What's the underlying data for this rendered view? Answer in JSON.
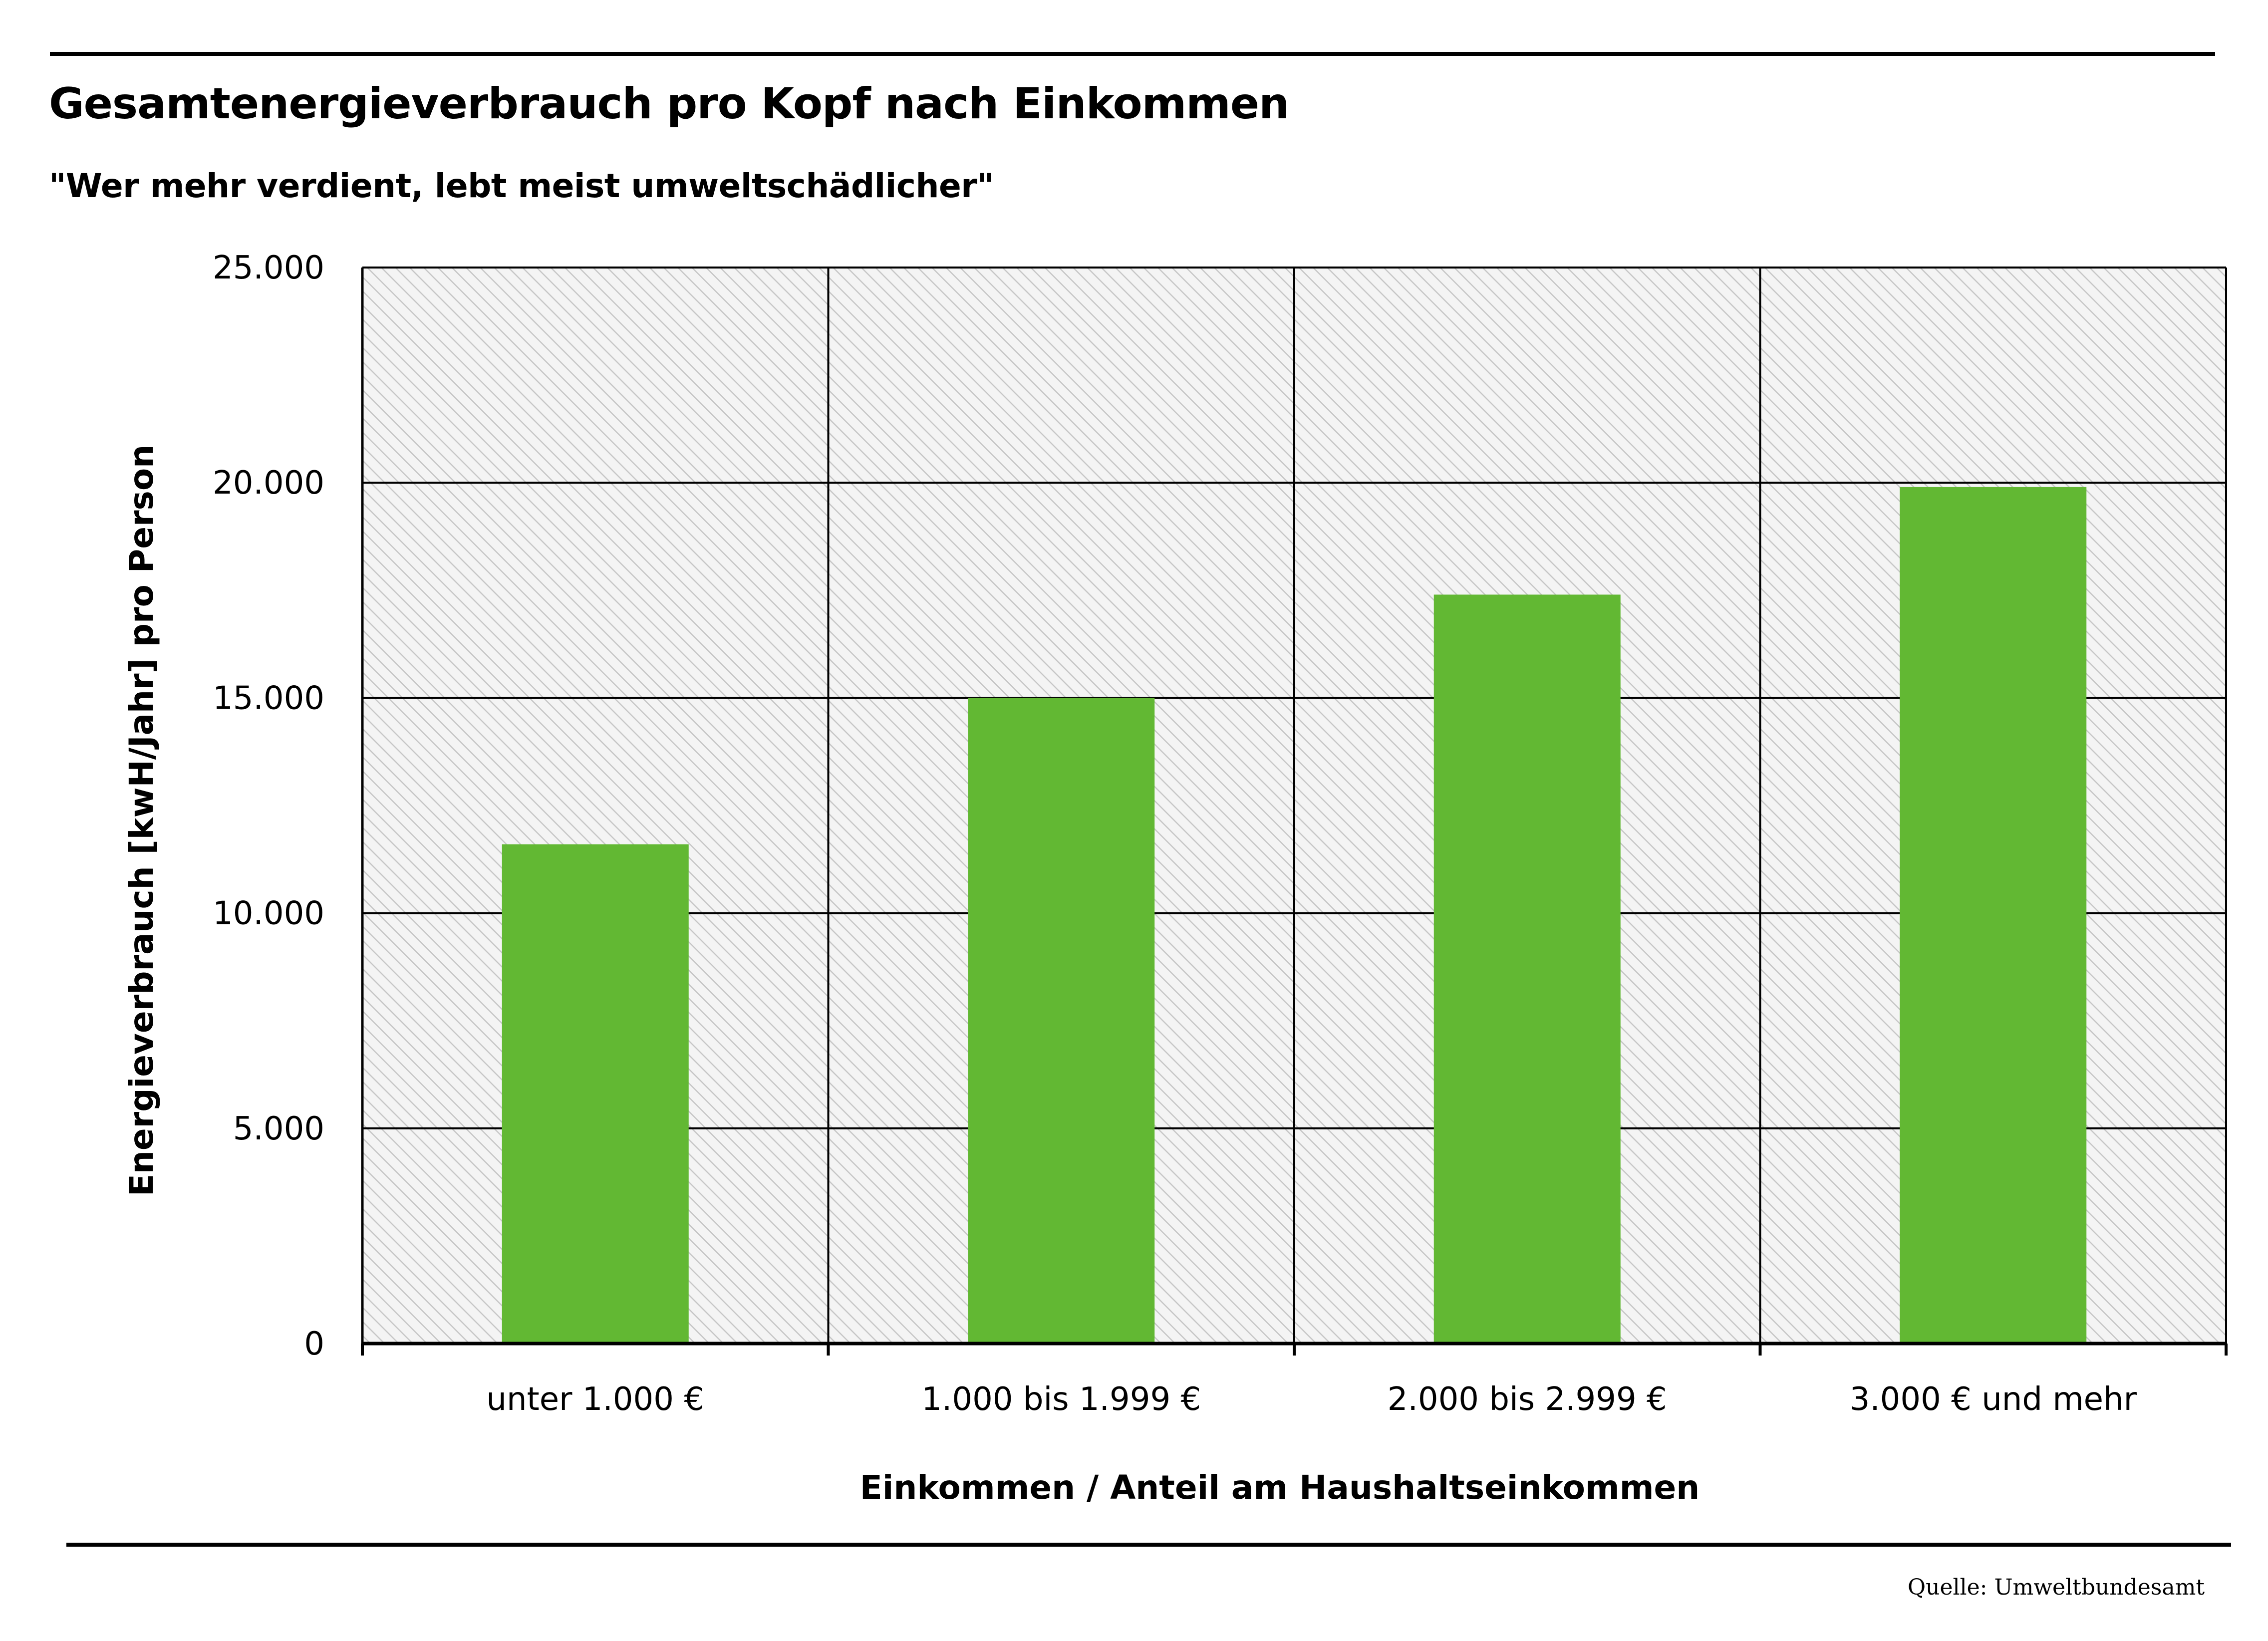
{
  "header": {
    "title": "Gesamtenergieverbrauch pro Kopf nach Einkommen",
    "subtitle": "\"Wer mehr verdient, lebt meist umweltschädlicher\""
  },
  "footer": {
    "source": "Quelle: Umweltbundesamt"
  },
  "chart_data": {
    "type": "bar",
    "categories": [
      "unter 1.000 €",
      "1.000 bis 1.999 €",
      "2.000 bis 2.999 €",
      "3.000 € und mehr"
    ],
    "values": [
      11600,
      15000,
      17400,
      19900
    ],
    "xlabel": "Einkommen / Anteil am Haushaltseinkommen",
    "ylabel": "Energieverbrauch [kwH/Jahr] pro Person",
    "ylim": [
      0,
      25000
    ],
    "yticks": [
      0,
      5000,
      10000,
      15000,
      20000,
      25000
    ],
    "ytick_labels": [
      "0",
      "5.000",
      "10.000",
      "15.000",
      "20.000",
      "25.000"
    ],
    "grid": true,
    "bar_color": "#62b833",
    "plot_background": "hatched light gray"
  }
}
